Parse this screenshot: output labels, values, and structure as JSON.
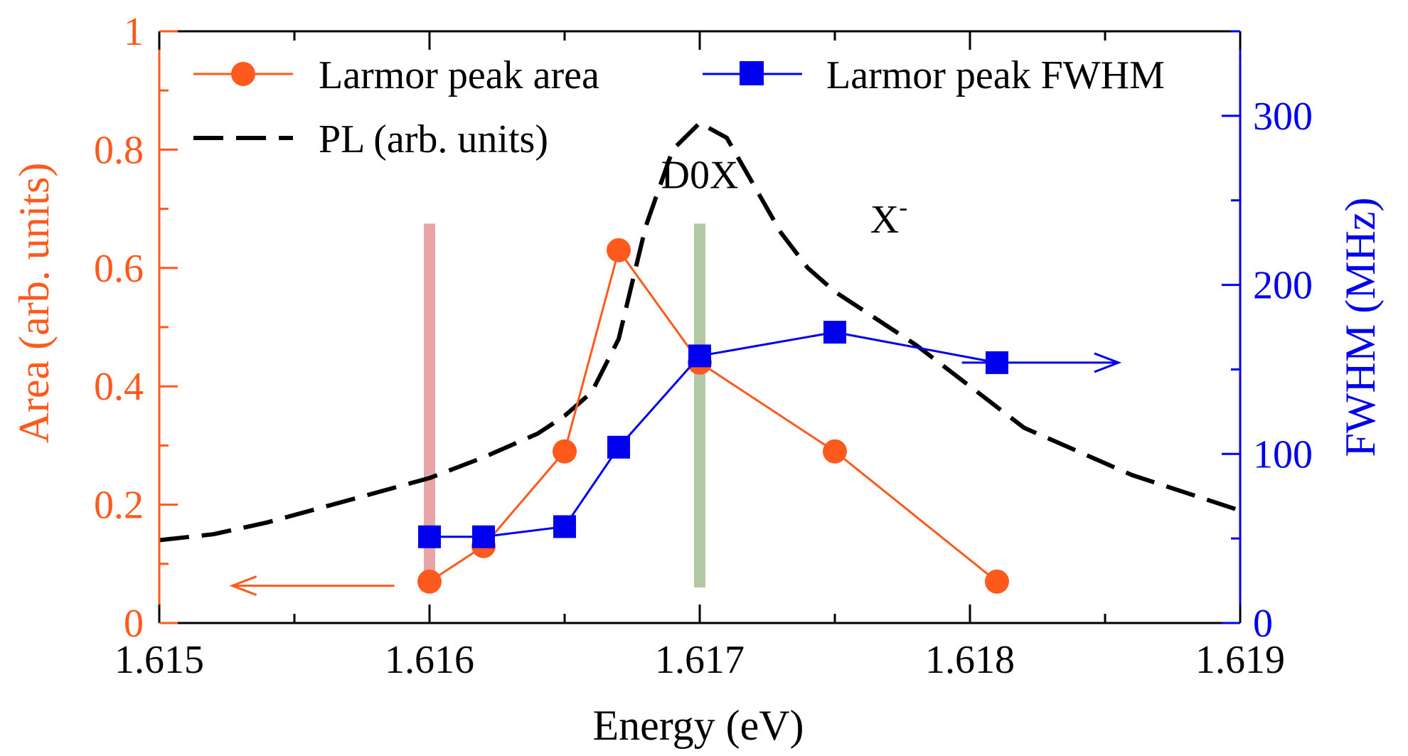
{
  "chart_data": {
    "type": "line",
    "xlabel": "Energy (eV)",
    "ylabel_left": "Area (arb. units)",
    "ylabel_right": "FWHM (MHz)",
    "xlim": [
      1.615,
      1.619
    ],
    "ylim_left": [
      0,
      1
    ],
    "ylim_right": [
      0,
      350
    ],
    "x_ticks": [
      "1.615",
      "1.616",
      "1.617",
      "1.618",
      "1.619"
    ],
    "y_left_ticks": [
      "0",
      "0.2",
      "0.4",
      "0.6",
      "0.8",
      "1"
    ],
    "y_right_ticks": [
      "0",
      "100",
      "200",
      "300"
    ],
    "grid": false,
    "legend_position": "top",
    "colors": {
      "area": "#ff5a1e",
      "fwhm": "#0000ee",
      "pl": "#000000",
      "band_red": "#e8a5a5",
      "band_green": "#b3c9a6"
    },
    "series": [
      {
        "name": "Larmor peak area",
        "axis": "left",
        "marker": "circle",
        "x": [
          1.616,
          1.6162,
          1.6165,
          1.6167,
          1.617,
          1.6175,
          1.6181
        ],
        "y": [
          0.07,
          0.13,
          0.29,
          0.63,
          0.44,
          0.29,
          0.07
        ]
      },
      {
        "name": "Larmor peak FWHM",
        "axis": "right",
        "marker": "square",
        "x": [
          1.616,
          1.6162,
          1.6165,
          1.6167,
          1.617,
          1.6175,
          1.6181
        ],
        "y": [
          51,
          51,
          57,
          104,
          158,
          172,
          154
        ]
      },
      {
        "name": "PL (arb. units)",
        "axis": "left",
        "style": "dashed",
        "x": [
          1.615,
          1.6152,
          1.6154,
          1.6156,
          1.6158,
          1.616,
          1.6162,
          1.6164,
          1.6165,
          1.6166,
          1.6167,
          1.6168,
          1.6169,
          1.617,
          1.6171,
          1.6172,
          1.6173,
          1.6174,
          1.6175,
          1.6176,
          1.6178,
          1.618,
          1.6182,
          1.6184,
          1.6186,
          1.6188,
          1.619
        ],
        "y": [
          0.14,
          0.15,
          0.17,
          0.195,
          0.22,
          0.245,
          0.28,
          0.32,
          0.35,
          0.39,
          0.48,
          0.67,
          0.8,
          0.845,
          0.82,
          0.74,
          0.66,
          0.6,
          0.56,
          0.53,
          0.47,
          0.4,
          0.33,
          0.29,
          0.25,
          0.22,
          0.19
        ]
      }
    ],
    "annotations": [
      {
        "text": "D0X",
        "x": 1.617,
        "y": 0.735
      },
      {
        "text": "X",
        "superscript": "-",
        "x": 1.6177,
        "y": 0.66
      }
    ],
    "bands": [
      {
        "x": 1.616,
        "y_from": 0.06,
        "y_to": 0.675,
        "color": "band_red"
      },
      {
        "x": 1.617,
        "y_from": 0.06,
        "y_to": 0.675,
        "color": "band_green"
      }
    ],
    "axis_arrows": [
      {
        "axis": "left",
        "x_from": 1.61587,
        "x_to": 1.61527,
        "y": 0.063
      },
      {
        "axis": "right",
        "x_from": 1.61797,
        "x_to": 1.61855,
        "y": 154
      }
    ]
  }
}
